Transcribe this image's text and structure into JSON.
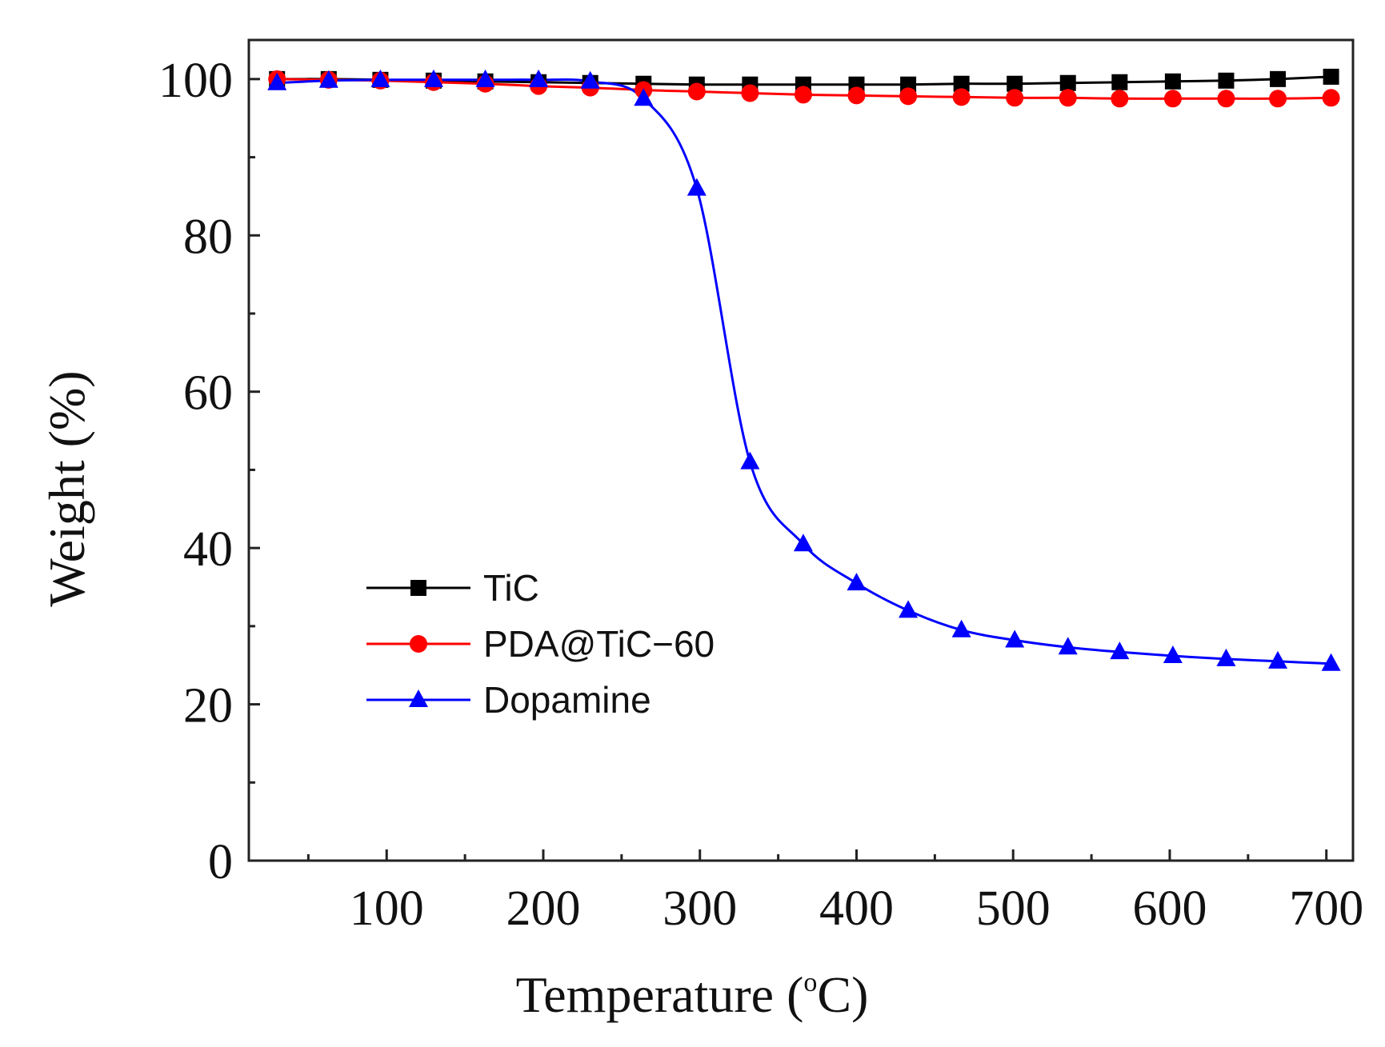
{
  "chart_data": {
    "type": "line",
    "title": "",
    "xlabel": "Temperature (",
    "xlabel_degree": "o",
    "xlabel_unit": "C)",
    "ylabel": "Weight (%)",
    "xlim": [
      12,
      717
    ],
    "ylim": [
      0,
      105
    ],
    "x_ticks": [
      100,
      200,
      300,
      400,
      500,
      600,
      700
    ],
    "x_minor_ticks": [
      50,
      150,
      250,
      350,
      450,
      550,
      650
    ],
    "y_ticks": [
      0,
      20,
      40,
      60,
      80,
      100
    ],
    "y_minor_ticks": [
      10,
      30,
      50,
      70,
      90
    ],
    "legend_position": "lower-left",
    "grid": false,
    "series": [
      {
        "name": "TiC",
        "color": "#000000",
        "marker": "square",
        "x": [
          30,
          63,
          96,
          130,
          163,
          197,
          230,
          264,
          298,
          332,
          366,
          400,
          433,
          467,
          501,
          535,
          568,
          602,
          636,
          669,
          703
        ],
        "y": [
          100.0,
          100.0,
          99.9,
          99.8,
          99.7,
          99.6,
          99.5,
          99.4,
          99.3,
          99.3,
          99.3,
          99.3,
          99.3,
          99.4,
          99.4,
          99.5,
          99.6,
          99.7,
          99.8,
          100.0,
          100.3
        ]
      },
      {
        "name": "PDA@TiC−60",
        "color": "#ff0000",
        "marker": "circle",
        "x": [
          30,
          63,
          96,
          130,
          163,
          197,
          230,
          264,
          298,
          332,
          366,
          400,
          433,
          467,
          501,
          535,
          568,
          602,
          636,
          669,
          703
        ],
        "y": [
          100.0,
          99.9,
          99.8,
          99.6,
          99.4,
          99.1,
          98.9,
          98.6,
          98.4,
          98.2,
          98.0,
          97.9,
          97.8,
          97.7,
          97.6,
          97.6,
          97.5,
          97.5,
          97.5,
          97.5,
          97.6
        ]
      },
      {
        "name": "Dopamine",
        "color": "#0000ff",
        "marker": "triangle",
        "x": [
          30,
          63,
          96,
          130,
          163,
          197,
          230,
          264,
          298,
          332,
          366,
          400,
          433,
          467,
          501,
          535,
          568,
          602,
          636,
          669,
          703
        ],
        "y": [
          99.5,
          99.8,
          99.9,
          99.9,
          99.9,
          99.9,
          99.7,
          97.5,
          86.0,
          51.0,
          40.5,
          35.5,
          32.0,
          29.5,
          28.2,
          27.3,
          26.7,
          26.2,
          25.8,
          25.5,
          25.2
        ]
      }
    ]
  }
}
